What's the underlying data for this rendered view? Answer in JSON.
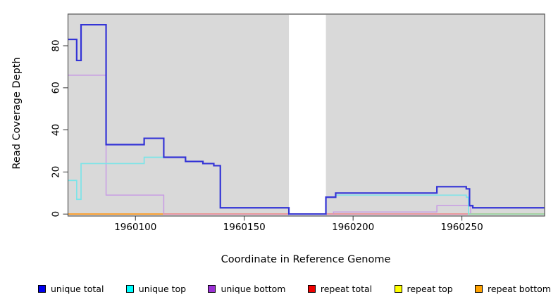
{
  "chart_data": {
    "type": "line",
    "subtype": "step-coverage",
    "title": "",
    "xlabel": "Coordinate in Reference Genome",
    "ylabel": "Read Coverage Depth",
    "x_domain": [
      1960069,
      1960288
    ],
    "y_domain": [
      0,
      95
    ],
    "x_ticks": [
      1960100,
      1960150,
      1960200,
      1960250
    ],
    "y_ticks": [
      0,
      20,
      40,
      60,
      80
    ],
    "grid": "off",
    "legend_position": "bottom",
    "plot_background": "#d9d9d9",
    "border_color": "#555555",
    "coverage_gap": {
      "x_start": 1960170.5,
      "x_end": 1960187.5,
      "color": "#ffffff"
    },
    "series": [
      {
        "name": "unique total",
        "line_color": "#3434d6",
        "legend_color": "#0000ee",
        "steps": [
          [
            1960069,
            83
          ],
          [
            1960073,
            73
          ],
          [
            1960075,
            90
          ],
          [
            1960086.5,
            33
          ],
          [
            1960104,
            36
          ],
          [
            1960113,
            27
          ],
          [
            1960123,
            25
          ],
          [
            1960131,
            24
          ],
          [
            1960136,
            23
          ],
          [
            1960139,
            3
          ],
          [
            1960170.5,
            0
          ],
          [
            1960187.5,
            8
          ],
          [
            1960192,
            10
          ],
          [
            1960238.5,
            13
          ],
          [
            1960252,
            12
          ],
          [
            1960253.5,
            4
          ],
          [
            1960255,
            3
          ]
        ]
      },
      {
        "name": "unique top",
        "line_color": "#7de4e8",
        "legend_color": "#00ffff",
        "steps": [
          [
            1960069,
            16
          ],
          [
            1960073,
            7
          ],
          [
            1960075,
            24
          ],
          [
            1960104,
            27
          ],
          [
            1960123,
            25
          ],
          [
            1960131,
            24
          ],
          [
            1960136,
            23
          ],
          [
            1960139,
            3
          ],
          [
            1960170.5,
            0
          ],
          [
            1960187.5,
            8
          ],
          [
            1960192,
            9
          ],
          [
            1960252,
            8
          ],
          [
            1960253,
            0
          ]
        ]
      },
      {
        "name": "unique bottom",
        "line_color": "#c89ce4",
        "legend_color": "#9b30d5",
        "steps": [
          [
            1960069,
            66
          ],
          [
            1960086.5,
            9
          ],
          [
            1960113,
            0
          ],
          [
            1960191,
            1
          ],
          [
            1960238.5,
            4
          ],
          [
            1960254,
            0
          ]
        ]
      },
      {
        "name": "repeat total",
        "line_color": "#e06060",
        "legend_color": "#ee0000",
        "steps": [
          [
            1960069,
            0
          ]
        ]
      },
      {
        "name": "repeat top",
        "line_color": "#f2ee6e",
        "legend_color": "#ffff00",
        "steps": [
          [
            1960069,
            0
          ]
        ]
      },
      {
        "name": "repeat bottom",
        "line_color": "#ff9514",
        "legend_color": "#ffa200",
        "steps": [
          [
            1960069,
            0
          ]
        ]
      }
    ],
    "baseline_overlaps": [
      {
        "x_start": 1960113,
        "x_end": 1960253,
        "color": "#e689a6",
        "note": "unique bottom over repeat baseline (pink blend at depth 0)"
      },
      {
        "x_start": 1960253,
        "x_end": 1960288,
        "color": "#94d6a6",
        "note": "unique top over repeat baseline (green blend at depth 0)"
      }
    ]
  }
}
